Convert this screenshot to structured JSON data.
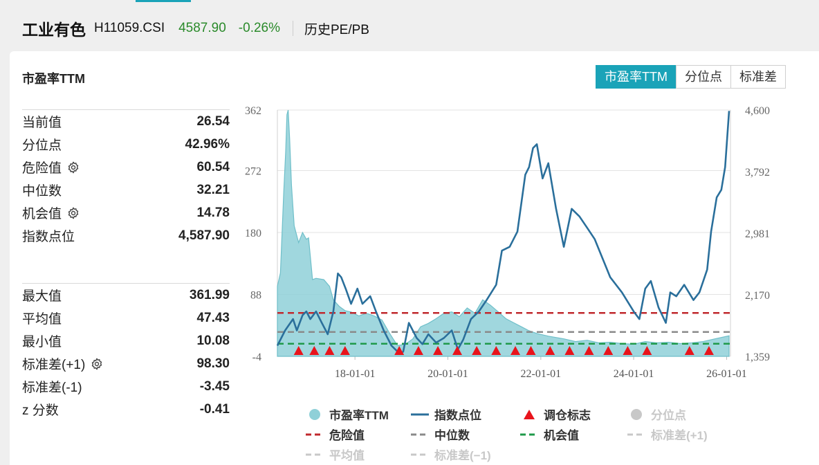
{
  "header": {
    "name": "工业有色",
    "code": "H11059.CSI",
    "price": "4587.90",
    "change": "-0.26%",
    "link": "历史PE/PB"
  },
  "card_title": "市盈率TTM",
  "tabs": [
    {
      "label": "市盈率TTM",
      "active": true
    },
    {
      "label": "分位点",
      "active": false
    },
    {
      "label": "标准差",
      "active": false
    }
  ],
  "stats_group1": [
    {
      "label": "当前值",
      "value": "26.54",
      "gear": false
    },
    {
      "label": "分位点",
      "value": "42.96%",
      "gear": false
    },
    {
      "label": "危险值",
      "value": "60.54",
      "gear": true
    },
    {
      "label": "中位数",
      "value": "32.21",
      "gear": false
    },
    {
      "label": "机会值",
      "value": "14.78",
      "gear": true
    },
    {
      "label": "指数点位",
      "value": "4,587.90",
      "gear": false
    }
  ],
  "stats_group2": [
    {
      "label": "最大值",
      "value": "361.99",
      "gear": false
    },
    {
      "label": "平均值",
      "value": "47.43",
      "gear": false
    },
    {
      "label": "最小值",
      "value": "10.08",
      "gear": false
    },
    {
      "label": "标准差(+1)",
      "value": "98.30",
      "gear": true
    },
    {
      "label": "标准差(-1)",
      "value": "-3.45",
      "gear": false
    },
    {
      "label": "z 分数",
      "value": "-0.41",
      "gear": false
    }
  ],
  "colors": {
    "pe_fill": "#8fd0d8",
    "pe_line": "#6fbfc9",
    "index_line": "#2a6f9b",
    "danger": "#c0282d",
    "median": "#8a8a8a",
    "opportunity": "#1f9a4a",
    "marker": "#e8141c",
    "dim": "#c8c8c8"
  },
  "chart_data": {
    "type": "area",
    "x_range": [
      "2016-05-01",
      "2026-01-31"
    ],
    "x_ticks": [
      "18-01-01",
      "20-01-01",
      "22-01-01",
      "24-01-01",
      "26-01-01"
    ],
    "y_left": {
      "range": [
        -4,
        362
      ],
      "ticks": [
        "362",
        "272",
        "180",
        "88",
        "-4"
      ]
    },
    "y_right": {
      "range": [
        1359,
        4600
      ],
      "ticks": [
        "4,600",
        "3,792",
        "2,981",
        "2,170",
        "1,359"
      ]
    },
    "reference_lines": {
      "danger": 60.54,
      "median": 32.21,
      "opportunity": 14.78
    },
    "series": [
      {
        "name": "市盈率TTM",
        "axis": "left",
        "points": [
          [
            "2016-05-01",
            100
          ],
          [
            "2016-05-25",
            120
          ],
          [
            "2016-06-20",
            240
          ],
          [
            "2016-07-05",
            300
          ],
          [
            "2016-07-15",
            355
          ],
          [
            "2016-07-25",
            362
          ],
          [
            "2016-08-05",
            320
          ],
          [
            "2016-08-20",
            250
          ],
          [
            "2016-09-10",
            190
          ],
          [
            "2016-10-15",
            165
          ],
          [
            "2016-11-15",
            180
          ],
          [
            "2016-12-15",
            170
          ],
          [
            "2017-01-01",
            172
          ],
          [
            "2017-02-01",
            110
          ],
          [
            "2017-03-01",
            112
          ],
          [
            "2017-05-01",
            110
          ],
          [
            "2017-06-15",
            100
          ],
          [
            "2017-07-15",
            80
          ],
          [
            "2017-09-01",
            70
          ],
          [
            "2017-10-15",
            64
          ],
          [
            "2017-12-01",
            62
          ],
          [
            "2018-02-01",
            56
          ],
          [
            "2018-04-01",
            60
          ],
          [
            "2018-06-01",
            56
          ],
          [
            "2018-08-01",
            50
          ],
          [
            "2018-10-01",
            30
          ],
          [
            "2018-12-01",
            12
          ],
          [
            "2019-02-01",
            14
          ],
          [
            "2019-04-01",
            22
          ],
          [
            "2019-06-01",
            40
          ],
          [
            "2019-08-01",
            45
          ],
          [
            "2019-10-01",
            52
          ],
          [
            "2019-12-01",
            60
          ],
          [
            "2020-02-01",
            62
          ],
          [
            "2020-04-01",
            55
          ],
          [
            "2020-06-01",
            68
          ],
          [
            "2020-08-01",
            60
          ],
          [
            "2020-10-01",
            80
          ],
          [
            "2020-12-01",
            72
          ],
          [
            "2021-02-01",
            62
          ],
          [
            "2021-04-01",
            52
          ],
          [
            "2021-06-01",
            46
          ],
          [
            "2021-08-01",
            40
          ],
          [
            "2021-10-01",
            34
          ],
          [
            "2021-12-01",
            30
          ],
          [
            "2022-03-01",
            26
          ],
          [
            "2022-07-01",
            22
          ],
          [
            "2022-10-01",
            18
          ],
          [
            "2023-01-01",
            20
          ],
          [
            "2023-04-01",
            16
          ],
          [
            "2023-07-01",
            17
          ],
          [
            "2023-10-01",
            15
          ],
          [
            "2024-01-01",
            14
          ],
          [
            "2024-04-01",
            18
          ],
          [
            "2024-07-01",
            16
          ],
          [
            "2024-10-01",
            17
          ],
          [
            "2025-01-01",
            15
          ],
          [
            "2025-04-01",
            16
          ],
          [
            "2025-07-01",
            18
          ],
          [
            "2025-10-01",
            22
          ],
          [
            "2026-01-20",
            26.54
          ]
        ]
      },
      {
        "name": "指数点位",
        "axis": "right",
        "points": [
          [
            "2016-05-01",
            1500
          ],
          [
            "2016-07-01",
            1700
          ],
          [
            "2016-09-01",
            1850
          ],
          [
            "2016-10-01",
            1700
          ],
          [
            "2016-11-15",
            1900
          ],
          [
            "2016-12-15",
            1950
          ],
          [
            "2017-01-15",
            1850
          ],
          [
            "2017-03-01",
            1950
          ],
          [
            "2017-04-15",
            1800
          ],
          [
            "2017-06-01",
            1650
          ],
          [
            "2017-07-15",
            1950
          ],
          [
            "2017-08-20",
            2450
          ],
          [
            "2017-09-15",
            2400
          ],
          [
            "2017-10-20",
            2250
          ],
          [
            "2017-12-01",
            2050
          ],
          [
            "2018-01-20",
            2250
          ],
          [
            "2018-03-01",
            2050
          ],
          [
            "2018-05-01",
            2150
          ],
          [
            "2018-06-15",
            1950
          ],
          [
            "2018-08-15",
            1700
          ],
          [
            "2018-10-15",
            1500
          ],
          [
            "2018-12-15",
            1400
          ],
          [
            "2019-01-15",
            1420
          ],
          [
            "2019-03-01",
            1800
          ],
          [
            "2019-05-01",
            1600
          ],
          [
            "2019-06-15",
            1520
          ],
          [
            "2019-08-01",
            1650
          ],
          [
            "2019-10-01",
            1540
          ],
          [
            "2019-12-01",
            1600
          ],
          [
            "2020-02-01",
            1700
          ],
          [
            "2020-03-20",
            1450
          ],
          [
            "2020-05-01",
            1580
          ],
          [
            "2020-07-01",
            1850
          ],
          [
            "2020-09-01",
            1950
          ],
          [
            "2020-11-01",
            2100
          ],
          [
            "2021-01-15",
            2300
          ],
          [
            "2021-03-01",
            2750
          ],
          [
            "2021-05-01",
            2800
          ],
          [
            "2021-07-01",
            3000
          ],
          [
            "2021-09-01",
            3750
          ],
          [
            "2021-10-01",
            3850
          ],
          [
            "2021-11-01",
            4100
          ],
          [
            "2021-12-01",
            4150
          ],
          [
            "2022-01-15",
            3700
          ],
          [
            "2022-03-01",
            3900
          ],
          [
            "2022-05-01",
            3300
          ],
          [
            "2022-07-01",
            2800
          ],
          [
            "2022-09-01",
            3300
          ],
          [
            "2022-11-01",
            3200
          ],
          [
            "2023-01-01",
            3050
          ],
          [
            "2023-03-01",
            2900
          ],
          [
            "2023-05-01",
            2650
          ],
          [
            "2023-07-01",
            2400
          ],
          [
            "2023-10-01",
            2200
          ],
          [
            "2024-01-01",
            1950
          ],
          [
            "2024-02-15",
            1850
          ],
          [
            "2024-04-01",
            2250
          ],
          [
            "2024-05-15",
            2350
          ],
          [
            "2024-07-15",
            2000
          ],
          [
            "2024-09-10",
            1800
          ],
          [
            "2024-10-15",
            2200
          ],
          [
            "2024-12-01",
            2150
          ],
          [
            "2025-02-01",
            2300
          ],
          [
            "2025-04-15",
            2100
          ],
          [
            "2025-06-01",
            2200
          ],
          [
            "2025-08-01",
            2500
          ],
          [
            "2025-09-01",
            3000
          ],
          [
            "2025-10-15",
            3450
          ],
          [
            "2025-11-20",
            3550
          ],
          [
            "2025-12-20",
            3850
          ],
          [
            "2026-01-20",
            4587.9
          ]
        ]
      }
    ],
    "markers": [
      "2016-10-15",
      "2017-02-15",
      "2017-06-15",
      "2017-10-15",
      "2018-12-15",
      "2019-05-15",
      "2019-10-15",
      "2020-03-15",
      "2020-08-15",
      "2021-01-15",
      "2021-06-15",
      "2021-10-15",
      "2022-03-15",
      "2022-08-15",
      "2023-01-15",
      "2023-06-15",
      "2023-11-15",
      "2024-04-15",
      "2025-03-15",
      "2025-08-15"
    ],
    "legend": [
      {
        "label": "市盈率TTM",
        "kind": "circle",
        "color": "#8fd0d8",
        "active": true
      },
      {
        "label": "指数点位",
        "kind": "line",
        "color": "#2a6f9b",
        "active": true
      },
      {
        "label": "调仓标志",
        "kind": "triangle",
        "color": "#e8141c",
        "active": true
      },
      {
        "label": "分位点",
        "kind": "circle",
        "color": "#c8c8c8",
        "active": false
      },
      {
        "label": "危险值",
        "kind": "dash",
        "color": "#c0282d",
        "active": true
      },
      {
        "label": "中位数",
        "kind": "dash",
        "color": "#8a8a8a",
        "active": true
      },
      {
        "label": "机会值",
        "kind": "dash",
        "color": "#1f9a4a",
        "active": true
      },
      {
        "label": "标准差(+1)",
        "kind": "dash",
        "color": "#c8c8c8",
        "active": false
      },
      {
        "label": "平均值",
        "kind": "dash",
        "color": "#c8c8c8",
        "active": false
      },
      {
        "label": "标准差(−1)",
        "kind": "dash",
        "color": "#c8c8c8",
        "active": false
      }
    ]
  }
}
